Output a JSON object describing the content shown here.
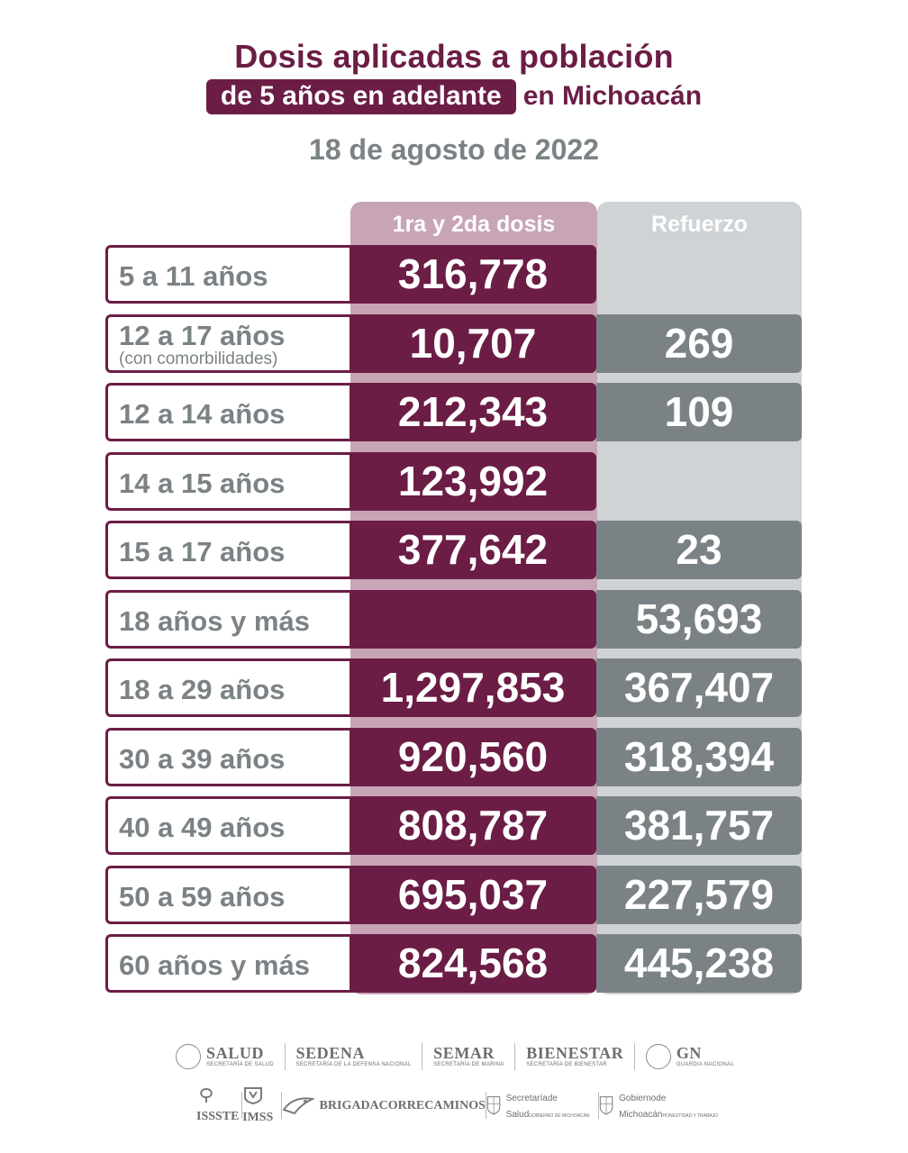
{
  "header": {
    "title_line1": "Dosis aplicadas a población",
    "title_highlight": "de 5 años en adelante",
    "title_rest": "en Michoacán",
    "date": "18 de agosto de 2022"
  },
  "columns": {
    "col1": "1ra y 2da dosis",
    "col2": "Refuerzo"
  },
  "rows": [
    {
      "label": "5 a 11 años",
      "sub": "",
      "dose12": "316,778",
      "booster": ""
    },
    {
      "label": "12 a 17 años",
      "sub": "(con comorbilidades)",
      "dose12": "10,707",
      "booster": "269"
    },
    {
      "label": "12 a 14 años",
      "sub": "",
      "dose12": "212,343",
      "booster": "109"
    },
    {
      "label": "14 a 15 años",
      "sub": "",
      "dose12": "123,992",
      "booster": ""
    },
    {
      "label": "15 a 17 años",
      "sub": "",
      "dose12": "377,642",
      "booster": "23"
    },
    {
      "label": "18 años y más",
      "sub": "",
      "dose12": "",
      "booster": "53,693"
    },
    {
      "label": "18 a 29 años",
      "sub": "",
      "dose12": "1,297,853",
      "booster": "367,407"
    },
    {
      "label": "30 a 39 años",
      "sub": "",
      "dose12": "920,560",
      "booster": "318,394"
    },
    {
      "label": "40 a 49 años",
      "sub": "",
      "dose12": "808,787",
      "booster": "381,757"
    },
    {
      "label": "50 a 59 años",
      "sub": "",
      "dose12": "695,037",
      "booster": "227,579"
    },
    {
      "label": "60 años y más",
      "sub": "",
      "dose12": "824,568",
      "booster": "445,238"
    }
  ],
  "logos_row1": [
    {
      "name": "SALUD",
      "sub": "SECRETARÍA DE SALUD"
    },
    {
      "name": "SEDENA",
      "sub": "SECRETARÍA DE LA DEFENSA NACIONAL"
    },
    {
      "name": "SEMAR",
      "sub": "SECRETARÍA DE MARINA"
    },
    {
      "name": "BIENESTAR",
      "sub": "SECRETARÍA DE BIENESTAR"
    },
    {
      "name": "GN",
      "sub": "GUARDIA NACIONAL"
    }
  ],
  "logos_row2": [
    {
      "name": "ISSSTE"
    },
    {
      "name": "IMSS"
    },
    {
      "name": "BRIGADA",
      "sub": "CORRECAMINOS"
    },
    {
      "name": "Secretaría",
      "sub": "de Salud",
      "sub2": "GOBIERNO DE MICHOACÁN"
    },
    {
      "name": "Gobierno",
      "sub": "de Michoacán",
      "sub2": "HONESTIDAD Y TRABAJO"
    }
  ],
  "colors": {
    "primary": "#6b1d45",
    "gray": "#7b8285",
    "col1_header": "#c8a5b6",
    "col2_header": "#cfd3d6"
  }
}
